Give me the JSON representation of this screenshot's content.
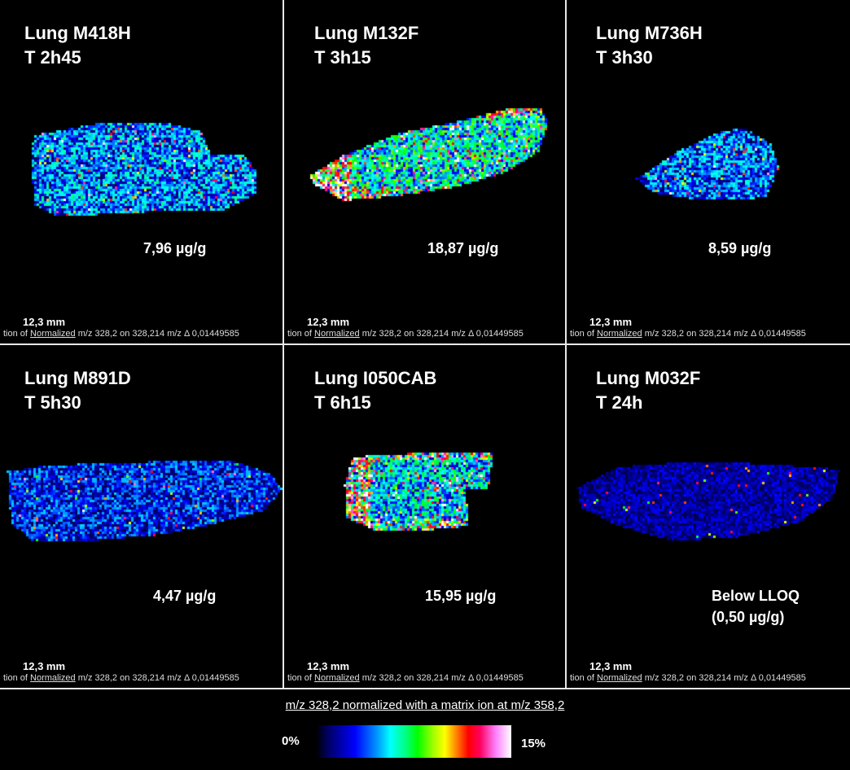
{
  "panels": [
    {
      "sample": "Lung M418H",
      "time": "T 2h45",
      "concentration": "7,96 µg/g",
      "concentration_2": "",
      "intensity": "medium"
    },
    {
      "sample": "Lung M132F",
      "time": "T 3h15",
      "concentration": "18,87 µg/g",
      "concentration_2": "",
      "intensity": "high"
    },
    {
      "sample": "Lung M736H",
      "time": "T 3h30",
      "concentration": "8,59 µg/g",
      "concentration_2": "",
      "intensity": "medium"
    },
    {
      "sample": "Lung M891D",
      "time": "T 5h30",
      "concentration": "4,47 µg/g",
      "concentration_2": "",
      "intensity": "low"
    },
    {
      "sample": "Lung I050CAB",
      "time": "T 6h15",
      "concentration": "15,95 µg/g",
      "concentration_2": "",
      "intensity": "high"
    },
    {
      "sample": "Lung M032F",
      "time": "T 24h",
      "concentration": "Below LLOQ",
      "concentration_2": "(0,50 µg/g)",
      "intensity": "very-low"
    }
  ],
  "scale_bar_label": "12,3 mm",
  "caption": {
    "prefix": "tion of ",
    "normalized": " Normalized",
    "rest": " m/z 328,2 on 328,214 m/z  Δ 0,01449585"
  },
  "legend": {
    "title": "m/z 328,2 normalized with a matrix ion at m/z 358,2",
    "min_label": "0%",
    "max_label": "15%"
  },
  "colors": {
    "background": "#000000",
    "divider": "#e8e8e8",
    "colormap": [
      "#000000",
      "#0000ff",
      "#00ffff",
      "#00ff00",
      "#ffff00",
      "#ff0000",
      "#ff80ff",
      "#ffffff"
    ]
  }
}
